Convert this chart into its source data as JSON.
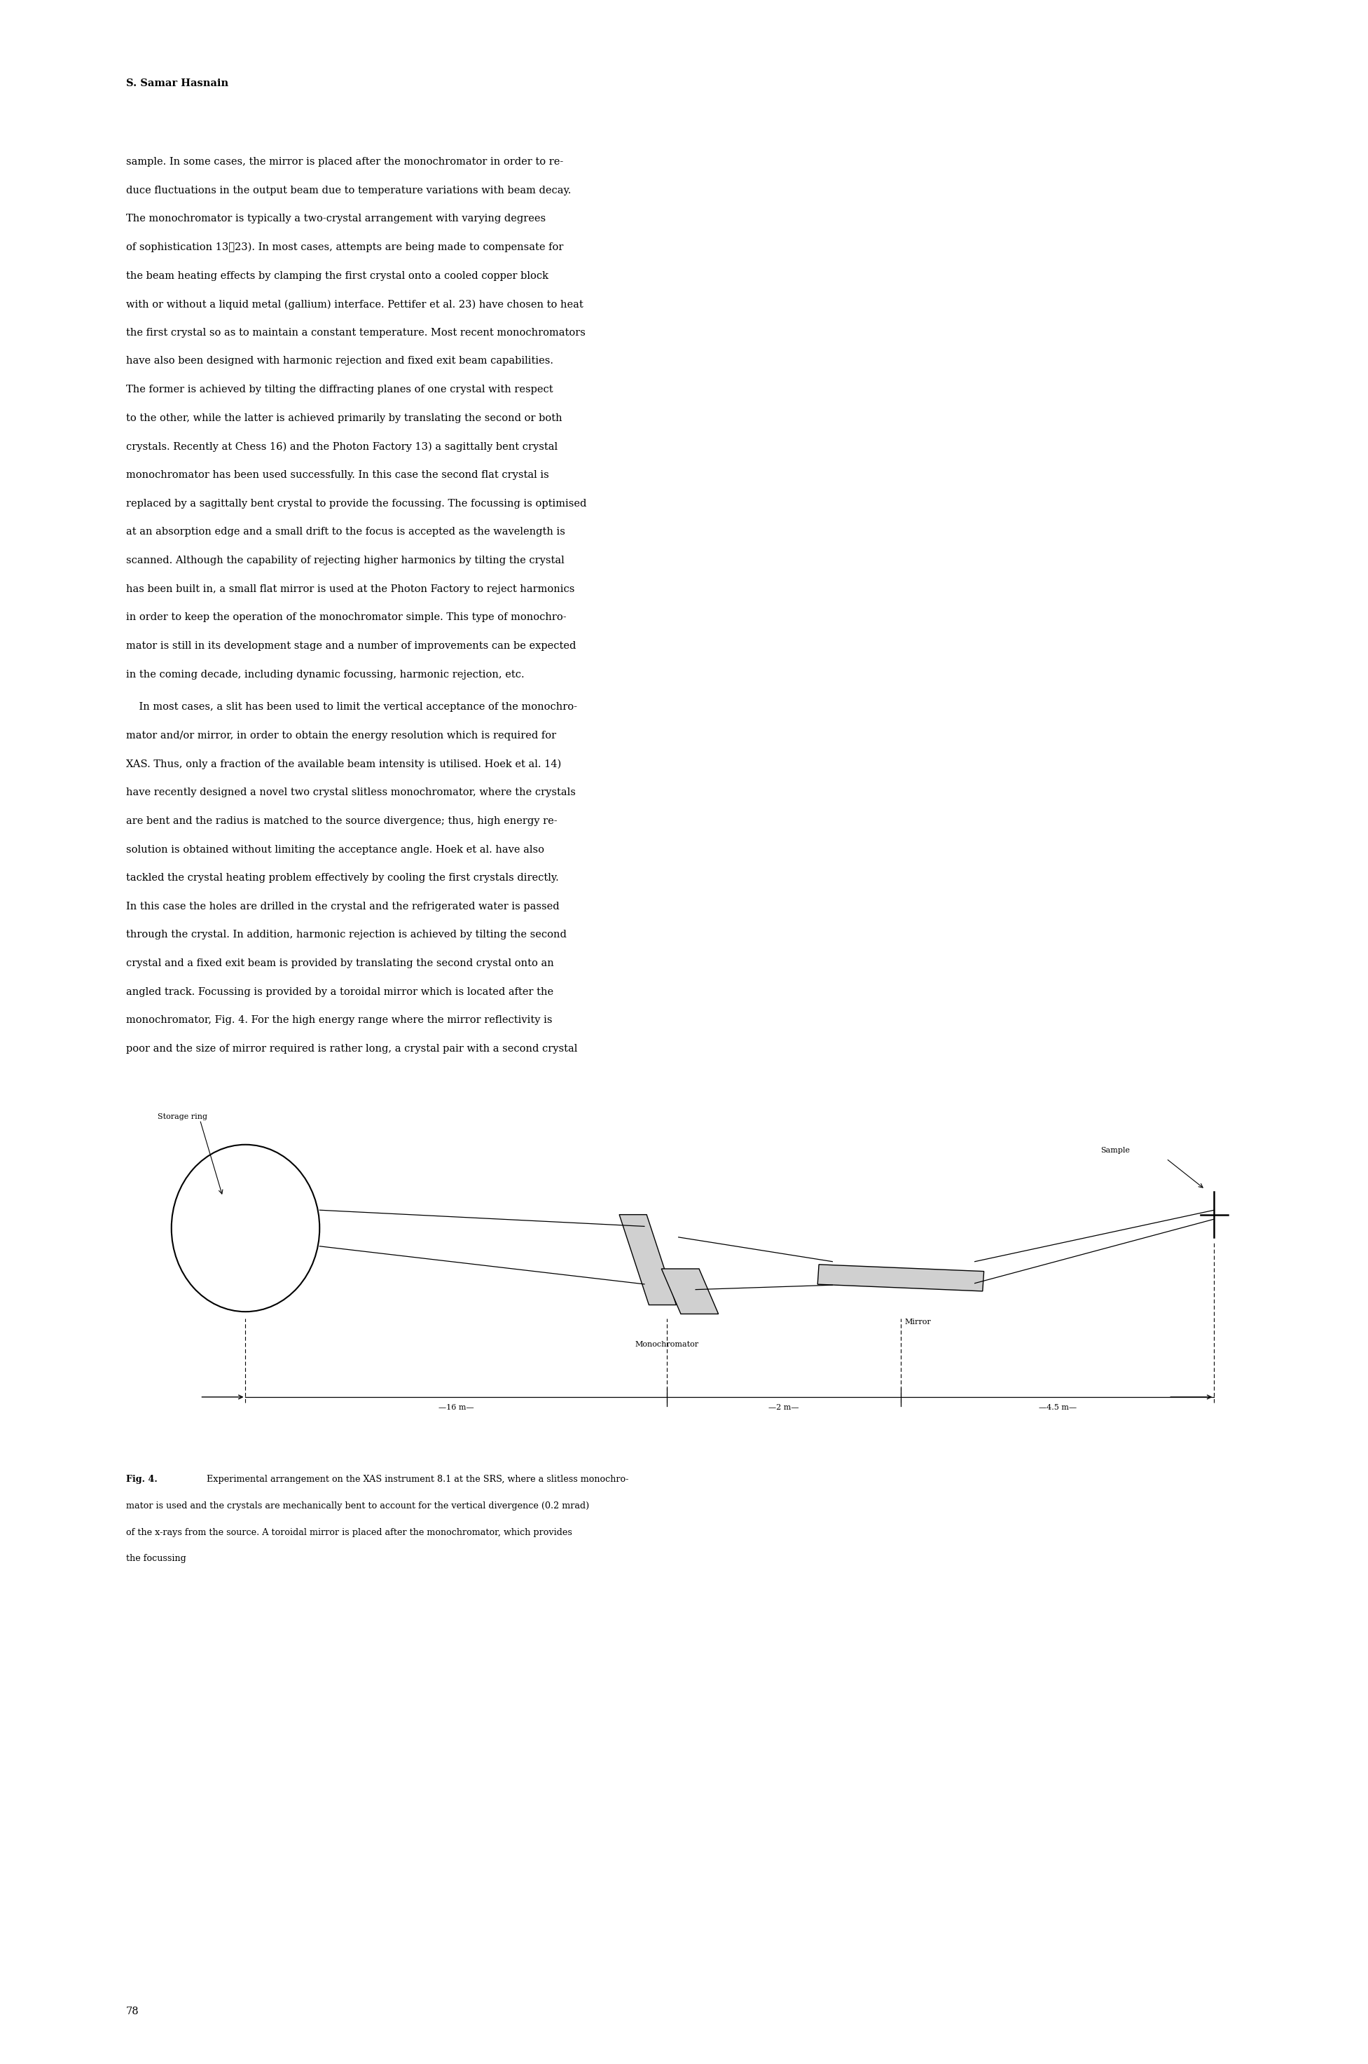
{
  "background_color": "#ffffff",
  "page_width": 19.53,
  "page_height": 29.46,
  "author_line": "S. Samar Hasnain",
  "p1_lines": [
    "sample. In some cases, the mirror is placed after the monochromator in order to re-",
    "duce fluctuations in the output beam due to temperature variations with beam decay.",
    "The monochromator is typically a two-crystal arrangement with varying degrees",
    "of sophistication 13⁲23). In most cases, attempts are being made to compensate for",
    "the beam heating effects by clamping the first crystal onto a cooled copper block",
    "with or without a liquid metal (gallium) interface. Pettifer et al. 23) have chosen to heat",
    "the first crystal so as to maintain a constant temperature. Most recent monochromators",
    "have also been designed with harmonic rejection and fixed exit beam capabilities.",
    "The former is achieved by tilting the diffracting planes of one crystal with respect",
    "to the other, while the latter is achieved primarily by translating the second or both",
    "crystals. Recently at Chess 16) and the Photon Factory 13) a sagittally bent crystal",
    "monochromator has been used successfully. In this case the second flat crystal is",
    "replaced by a sagittally bent crystal to provide the focussing. The focussing is optimised",
    "at an absorption edge and a small drift to the focus is accepted as the wavelength is",
    "scanned. Although the capability of rejecting higher harmonics by tilting the crystal",
    "has been built in, a small flat mirror is used at the Photon Factory to reject harmonics",
    "in order to keep the operation of the monochromator simple. This type of monochro-",
    "mator is still in its development stage and a number of improvements can be expected",
    "in the coming decade, including dynamic focussing, harmonic rejection, etc."
  ],
  "p2_lines": [
    "    In most cases, a slit has been used to limit the vertical acceptance of the monochro-",
    "mator and/or mirror, in order to obtain the energy resolution which is required for",
    "XAS. Thus, only a fraction of the available beam intensity is utilised. Hoek et al. 14)",
    "have recently designed a novel two crystal slitless monochromator, where the crystals",
    "are bent and the radius is matched to the source divergence; thus, high energy re-",
    "solution is obtained without limiting the acceptance angle. Hoek et al. have also",
    "tackled the crystal heating problem effectively by cooling the first crystals directly.",
    "In this case the holes are drilled in the crystal and the refrigerated water is passed",
    "through the crystal. In addition, harmonic rejection is achieved by tilting the second",
    "crystal and a fixed exit beam is provided by translating the second crystal onto an",
    "angled track. Focussing is provided by a toroidal mirror which is located after the",
    "monochromator, Fig. 4. For the high energy range where the mirror reflectivity is",
    "poor and the size of mirror required is rather long, a crystal pair with a second crystal"
  ],
  "cap_line1_bold": "Fig. 4.",
  "cap_line1_rest": " Experimental arrangement on the XAS instrument 8.1 at the SRS, where a slitless monochro-",
  "cap_lines_rest": [
    "mator is used and the crystals are mechanically bent to account for the vertical divergence (0.2 mrad)",
    "of the x-rays from the source. A toroidal mirror is placed after the monochromator, which provides",
    "the focussing"
  ],
  "page_number": "78",
  "label_storage_ring": "Storage ring",
  "label_monochromator": "Monochromator",
  "label_mirror": "Mirror",
  "label_sample": "Sample",
  "dim_16m": "16 m",
  "dim_2m": "2 m",
  "dim_45m": "4.5 m"
}
